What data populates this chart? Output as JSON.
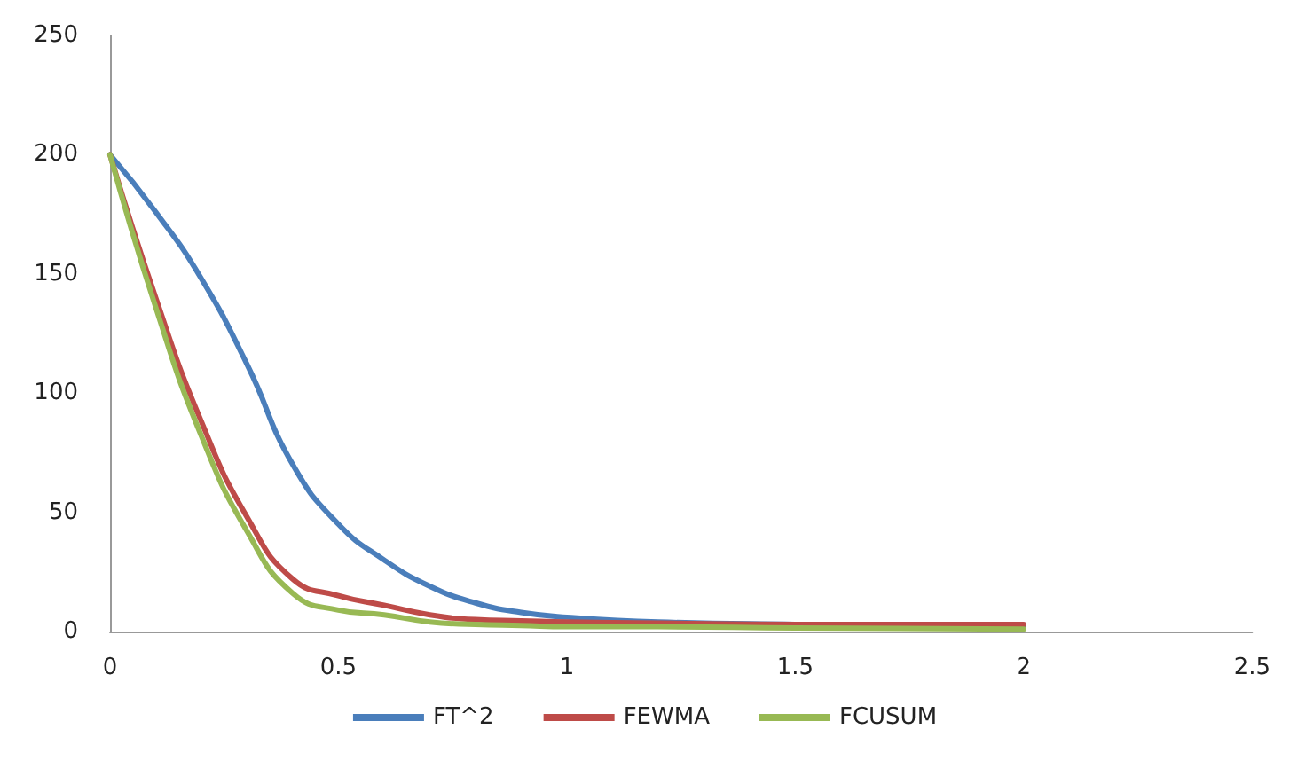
{
  "chart_data": {
    "type": "line",
    "x": [
      0,
      0.1,
      0.2,
      0.3,
      0.4,
      0.5,
      0.6,
      0.7,
      0.8,
      0.9,
      1,
      1.2,
      1.5,
      2
    ],
    "series": [
      {
        "name": "FT^2",
        "color": "#4a7ebb",
        "values": [
          200,
          176,
          148,
          112,
          70,
          45,
          30,
          19,
          12,
          8,
          6,
          4,
          3,
          2
        ]
      },
      {
        "name": "FEWMA",
        "color": "#be4b48",
        "values": [
          200,
          140,
          88,
          48,
          22,
          15,
          11,
          7,
          5,
          4.5,
          4,
          3.5,
          3,
          3
        ]
      },
      {
        "name": "FCUSUM",
        "color": "#98b954",
        "values": [
          200,
          136,
          82,
          42,
          16,
          9,
          7,
          4,
          3,
          2.5,
          2,
          2,
          1.5,
          1
        ]
      }
    ],
    "xlim": [
      0,
      2.5
    ],
    "xticks": [
      0,
      0.5,
      1,
      1.5,
      2,
      2.5
    ],
    "ylim": [
      0,
      250
    ],
    "yticks": [
      0,
      50,
      100,
      150,
      200,
      250
    ],
    "grid": false,
    "legend": "bottom",
    "marker": "none",
    "line_style": "solid"
  }
}
